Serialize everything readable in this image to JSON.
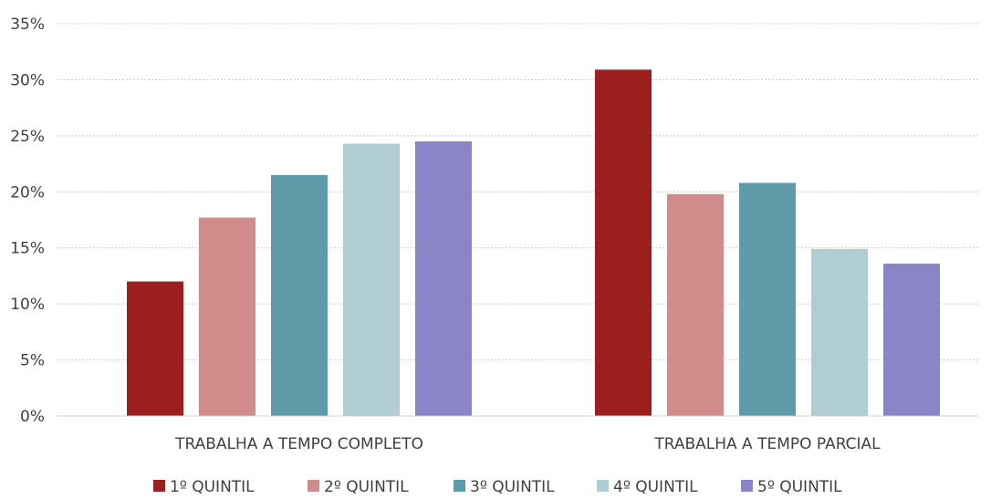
{
  "chart_data": {
    "type": "bar",
    "categories": [
      "TRABALHA A TEMPO COMPLETO",
      "TRABALHA A TEMPO PARCIAL"
    ],
    "series": [
      {
        "name": "1º QUINTIL",
        "color": "#9b1f1f",
        "values": [
          0.12,
          0.309
        ]
      },
      {
        "name": "2º QUINTIL",
        "color": "#cf8c8b",
        "values": [
          0.177,
          0.198
        ]
      },
      {
        "name": "3º QUINTIL",
        "color": "#5e9aa7",
        "values": [
          0.215,
          0.208
        ]
      },
      {
        "name": "4º QUINTIL",
        "color": "#b0cdd2",
        "values": [
          0.243,
          0.149
        ]
      },
      {
        "name": "5º QUINTIL",
        "color": "#8985c6",
        "values": [
          0.245,
          0.136
        ]
      }
    ],
    "ylim": [
      0,
      0.35
    ],
    "yticks": [
      "0%",
      "5%",
      "10%",
      "15%",
      "20%",
      "25%",
      "30%",
      "35%"
    ],
    "grid": true,
    "legend_position": "bottom",
    "title": "",
    "xlabel": "",
    "ylabel": ""
  }
}
